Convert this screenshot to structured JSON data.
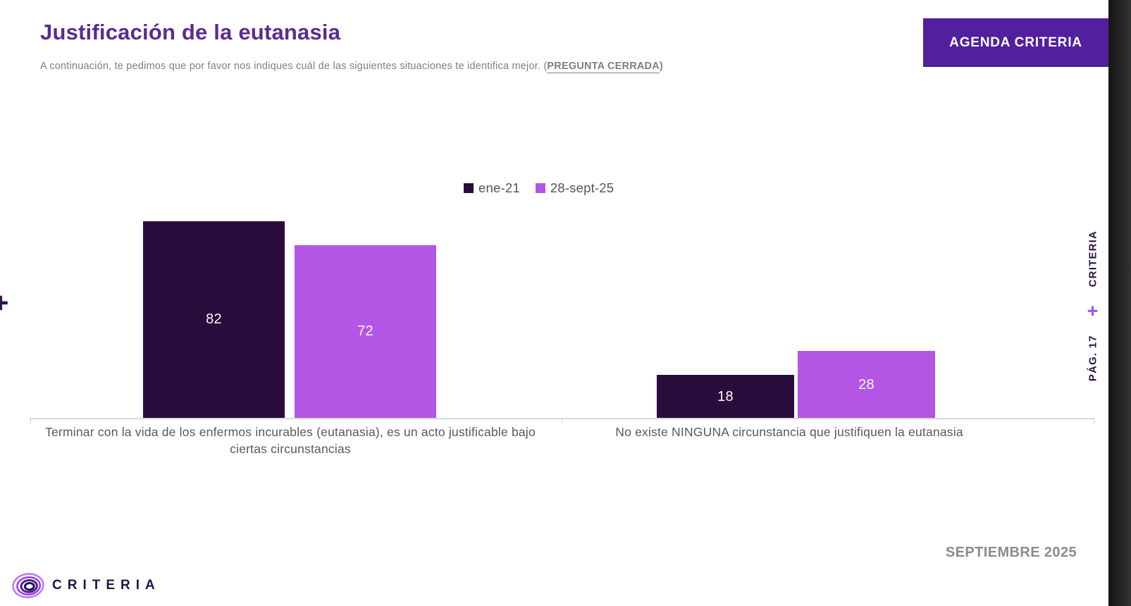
{
  "header": {
    "title": "Justificación de la eutanasia",
    "subtitle_prefix": "A continuación, te pedimos que por favor nos indiques cuál de las siguientes situaciones te identifica mejor. (",
    "subtitle_emphasis": "PREGUNTA CERRADA",
    "subtitle_suffix": ")",
    "agenda_button_label": "AGENDA CRITERIA"
  },
  "chart_data": {
    "type": "bar",
    "title": "Justificación de la eutanasia",
    "categories": [
      "Terminar con la vida de los enfermos incurables (eutanasia), es un acto justificable bajo ciertas circunstancias",
      "No existe NINGUNA circunstancia que justifiquen la eutanasia"
    ],
    "series": [
      {
        "name": "ene-21",
        "color": "#290d3d",
        "values": [
          82,
          18
        ]
      },
      {
        "name": "28-sept-25",
        "color": "#b356e6",
        "values": [
          72,
          28
        ]
      }
    ],
    "ylim": [
      0,
      100
    ],
    "value_labels_shown": true,
    "legend_position": "top-center",
    "grid": false
  },
  "right_rail": {
    "brand": "CRITERIA",
    "plus": "+",
    "page": "PÁG. 17"
  },
  "left_rail": {
    "plus": "+"
  },
  "footer": {
    "brand": "CRITERIA",
    "date": "SEPTIEMBRE 2025"
  },
  "colors": {
    "title": "#5b2b8f",
    "button_bg": "#521f9e",
    "bar_dark": "#290d3d",
    "bar_light": "#b356e6",
    "subtitle_gray": "#7f7f7f",
    "axis_label_gray": "#595959",
    "date_gray": "#8c8a8a",
    "strip_dark": "#262626",
    "accent_plus": "#a050f0"
  }
}
